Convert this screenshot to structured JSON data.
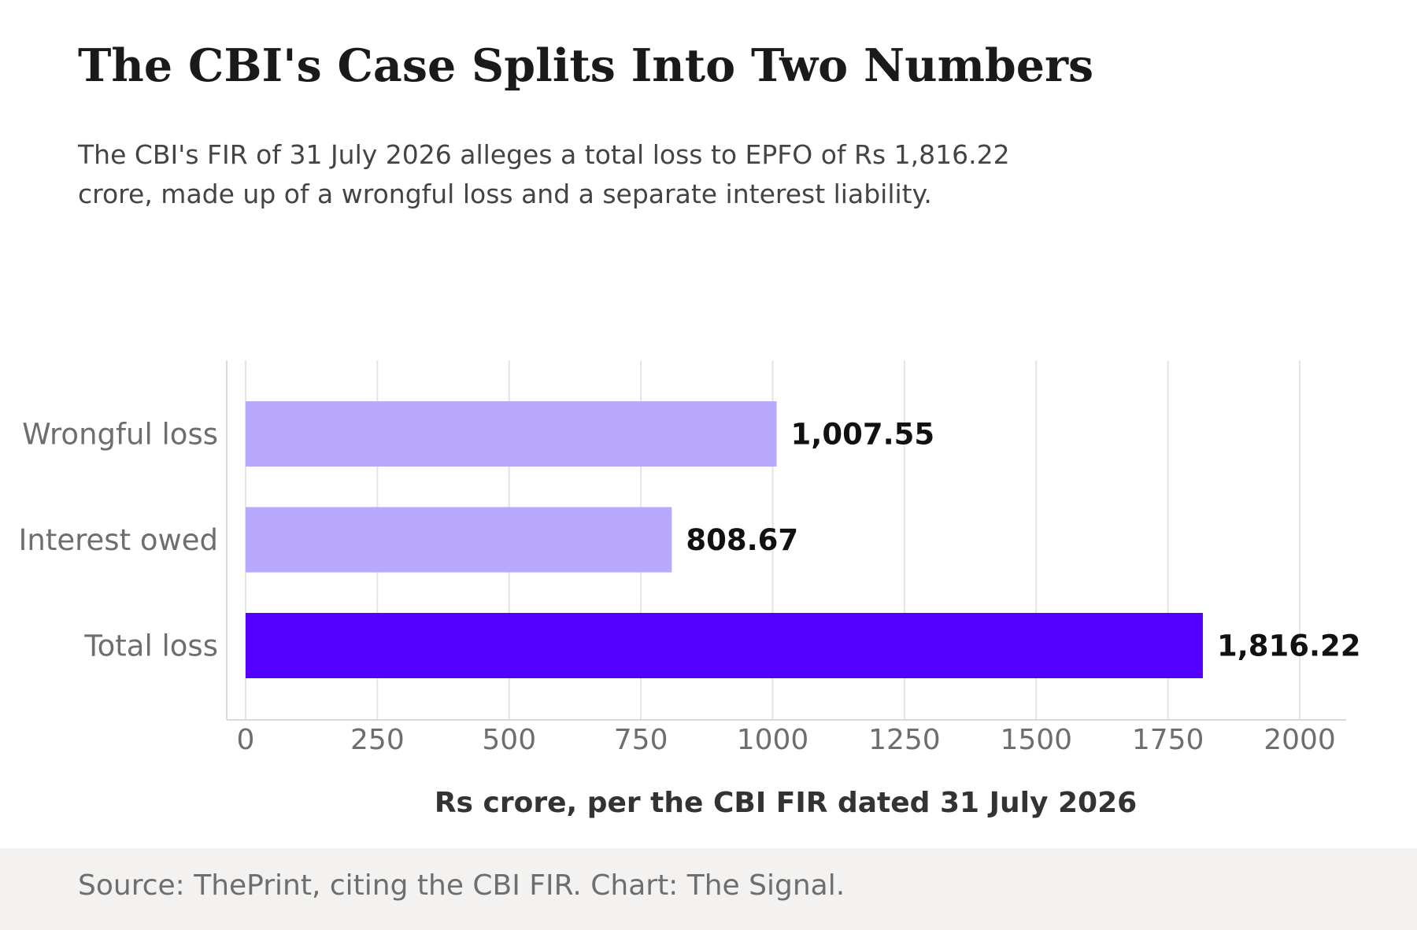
{
  "header": {
    "title": "The CBI's Case Splits Into Two Numbers",
    "subtitle": "The CBI's FIR of 31 July 2026 alleges a total loss to EPFO of Rs 1,816.22 crore, made up of a wrongful loss and a separate interest liability."
  },
  "footer": {
    "source": "Source: ThePrint, citing the CBI FIR. Chart: The Signal."
  },
  "chart_data": {
    "type": "bar",
    "orientation": "horizontal",
    "categories": [
      "Wrongful loss",
      "Interest owed",
      "Total loss"
    ],
    "values": [
      1007.55,
      808.67,
      1816.22
    ],
    "value_labels": [
      "1,007.55",
      "808.67",
      "1,816.22"
    ],
    "bar_colors": [
      "#b8a9ff",
      "#b8a9ff",
      "#5200ff"
    ],
    "xlabel": "Rs crore, per the CBI FIR dated 31 July 2026",
    "ylabel": "",
    "xlim": [
      0,
      2000
    ],
    "xticks": [
      0,
      250,
      500,
      750,
      1000,
      1250,
      1500,
      1750,
      2000
    ],
    "grid": "vertical",
    "legend": "none"
  }
}
